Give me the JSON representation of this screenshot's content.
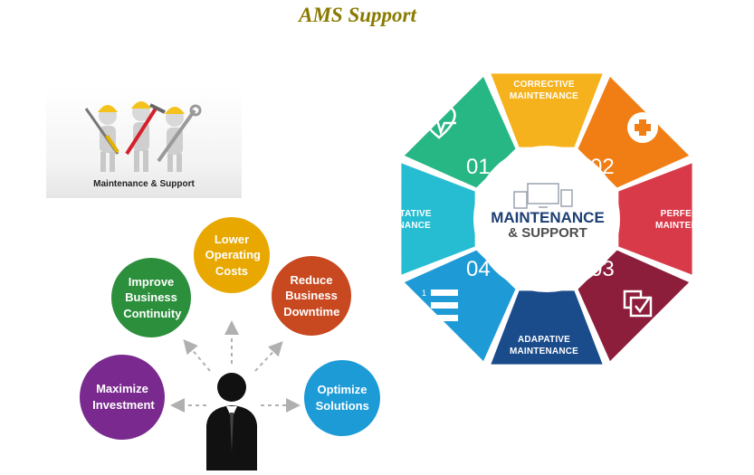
{
  "title": "AMS Support",
  "photo": {
    "caption": "Maintenance & Support"
  },
  "benefits": [
    {
      "text": "Maximize Investment",
      "color": "#7a2a8f"
    },
    {
      "text": "Improve Business Continuity",
      "color": "#2c8f3c"
    },
    {
      "text": "Lower Operating Costs",
      "color": "#e8a800"
    },
    {
      "text": "Reduce Business Downtime",
      "color": "#c8481f"
    },
    {
      "text": "Optimize Solutions",
      "color": "#1d9bd7"
    }
  ],
  "wheel": {
    "center_title": "MAINTENANCE",
    "center_subtitle": "& SUPPORT",
    "segments": [
      {
        "label": "CORRECTIVE MAINTENANCE",
        "color": "#f6b21c"
      },
      {
        "number": "02",
        "icon": "plus-icon",
        "color": "#f07e14"
      },
      {
        "label": "PERFECTIVE MAINTENANCE",
        "color": "#d93a4a"
      },
      {
        "number": "03",
        "icon": "checklist-icon",
        "color": "#8c1d3b"
      },
      {
        "label": "ADAPATIVE MAINTENANCE",
        "color": "#1a4c8c"
      },
      {
        "number": "04",
        "icon": "numbered-list-icon",
        "color": "#1e9bd6"
      },
      {
        "label": "PREVENTATIVE MAINTENANCE",
        "color": "#26bdd2"
      },
      {
        "number": "01",
        "icon": "heartbeat-icon",
        "color": "#27b784"
      }
    ]
  }
}
